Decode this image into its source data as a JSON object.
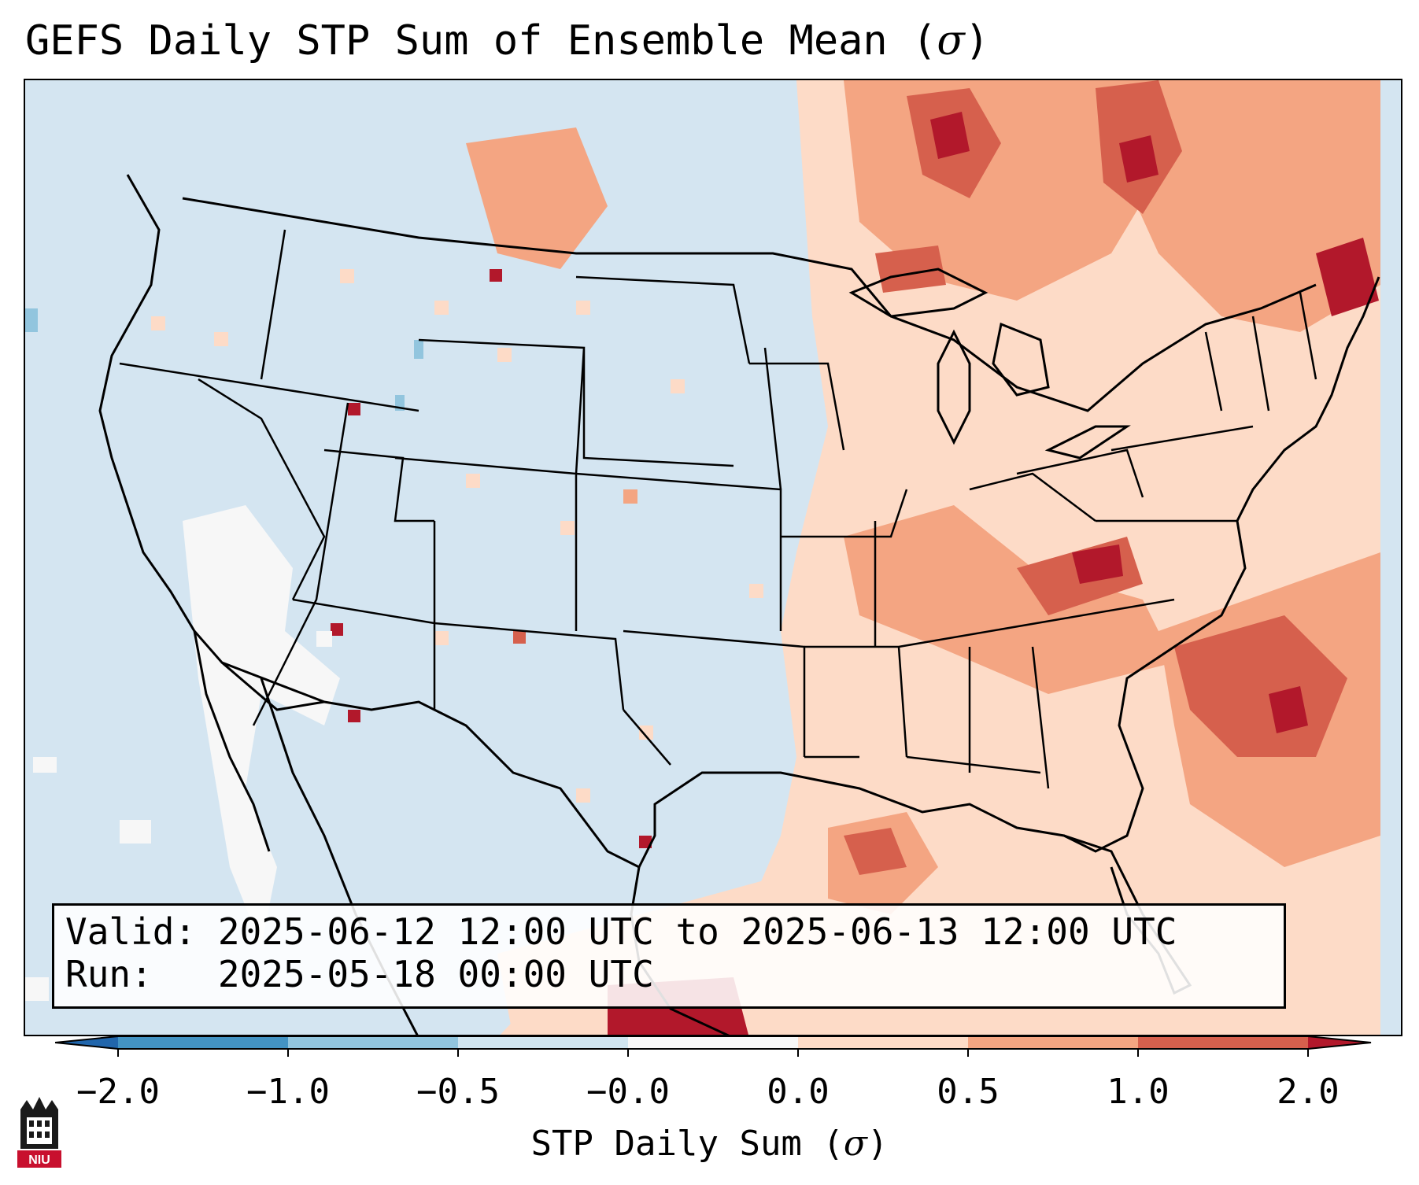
{
  "title": "GEFS Daily STP Sum of Ensemble Mean (",
  "title_symbol": "σ",
  "title_close": ")",
  "info": {
    "valid_label": "Valid:",
    "valid_value": "2025-06-12 12:00 UTC to 2025-06-13 12:00 UTC",
    "run_label": "Run:",
    "run_value": "2025-05-18 00:00 UTC"
  },
  "colorbar": {
    "ticks": [
      "−2.0",
      "−1.0",
      "−0.5",
      "−0.0",
      "0.0",
      "0.5",
      "1.0",
      "2.0"
    ],
    "label_text": "STP Daily Sum (",
    "label_symbol": "σ",
    "label_close": ")",
    "colors": {
      "below_min": "#2166ac",
      "n2_n1": "#4393c3",
      "n1_n05": "#92c5de",
      "n05_0": "#d1e5f0",
      "neutral": "#f7f7f7",
      "p0_p05": "#fddbc7",
      "p05_p1": "#f4a582",
      "p1_p2": "#d6604d",
      "above_max": "#b2182b"
    }
  },
  "map": {
    "background_color": "#d4e5f1",
    "anomaly_regions": [
      {
        "level": "high",
        "area": "Ontario / Quebec border"
      },
      {
        "level": "high",
        "area": "Lake Superior region"
      },
      {
        "level": "high",
        "area": "Kentucky / Tennessee / Virginia"
      },
      {
        "level": "high",
        "area": "Western Atlantic off Carolinas"
      },
      {
        "level": "high",
        "area": "Gulf of Mexico off Louisiana"
      },
      {
        "level": "moderate",
        "area": "Mississippi Valley / Ohio Valley"
      },
      {
        "level": "moderate",
        "area": "Southern Atlantic / Florida"
      },
      {
        "level": "negative",
        "area": "Baja California / Pacific coast"
      }
    ]
  },
  "logo": {
    "text": "NIU"
  }
}
